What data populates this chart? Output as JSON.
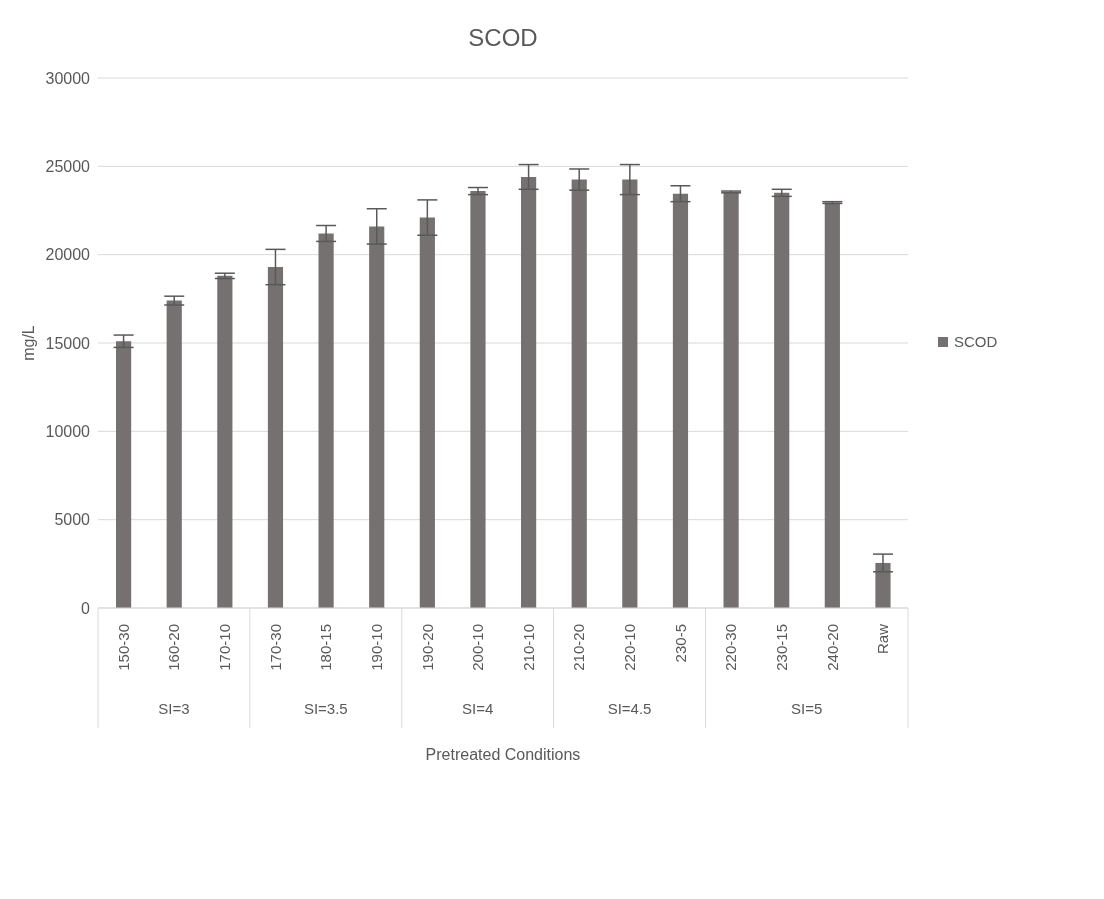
{
  "chart_data": {
    "type": "bar",
    "title": "SCOD",
    "xlabel": "Pretreated Conditions",
    "ylabel": "mg/L",
    "categories": [
      "150-30",
      "160-20",
      "170-10",
      "170-30",
      "180-15",
      "190-10",
      "190-20",
      "200-10",
      "210-10",
      "210-20",
      "220-10",
      "230-5",
      "220-30",
      "230-15",
      "240-20",
      "Raw"
    ],
    "series": [
      {
        "name": "SCOD",
        "color": "#767171",
        "values": [
          15100,
          17400,
          18800,
          19300,
          21200,
          21600,
          22100,
          23600,
          24400,
          24250,
          24250,
          23450,
          23550,
          23500,
          22950,
          2550
        ],
        "errors": [
          350,
          250,
          150,
          1000,
          450,
          1000,
          1000,
          200,
          700,
          600,
          850,
          450,
          50,
          200,
          50,
          500
        ]
      }
    ],
    "annotations": [
      "SI=3",
      "SI=3.5",
      "SI=4",
      "SI=4.5",
      "SI=5"
    ],
    "ylim": [
      0,
      30000
    ],
    "yticks": [
      0,
      5000,
      10000,
      15000,
      20000,
      25000,
      30000
    ],
    "grid": "y",
    "legend": "right"
  }
}
